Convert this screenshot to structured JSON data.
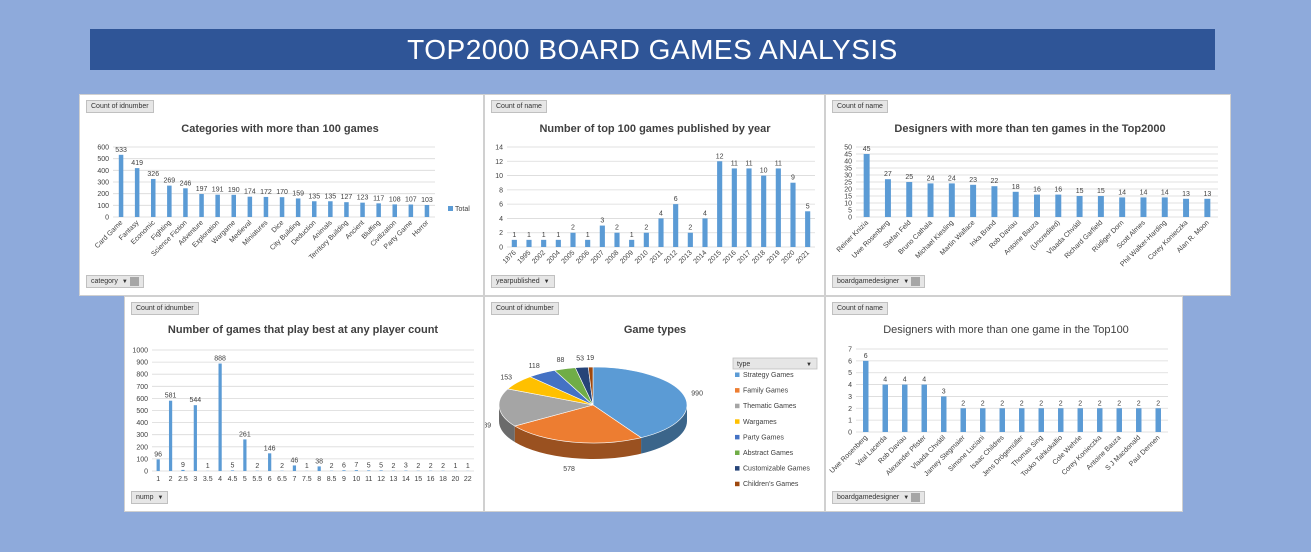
{
  "page_title": "TOP2000 BOARD GAMES ANALYSIS",
  "colors": {
    "bar": "#5b9bd5",
    "grid": "#d9d9d9",
    "banner": "#2f5597"
  },
  "charts": {
    "categories": {
      "field_button": "Count of idnumber",
      "filter_button": "category",
      "chart_data": {
        "type": "bar",
        "title": "Categories with more than 100 games",
        "categories": [
          "Card Game",
          "Fantasy",
          "Economic",
          "Fighting",
          "Science Fiction",
          "Adventure",
          "Exploration",
          "Wargame",
          "Medieval",
          "Miniatures",
          "Dice",
          "City Building",
          "Deduction",
          "Animals",
          "Territory Building",
          "Ancient",
          "Bluffing",
          "Civilization",
          "Party Game",
          "Horror"
        ],
        "values": [
          533,
          419,
          326,
          269,
          246,
          197,
          191,
          190,
          174,
          172,
          170,
          159,
          135,
          135,
          127,
          123,
          117,
          108,
          107,
          103
        ],
        "ylim": [
          0,
          600
        ],
        "yticks": [
          0,
          100,
          200,
          300,
          400,
          500,
          600
        ],
        "legend": [
          "Total"
        ],
        "legend_position": "right"
      }
    },
    "years": {
      "field_button": "Count of name",
      "filter_button": "yearpublished",
      "chart_data": {
        "type": "bar",
        "title": "Number of top 100 games published by year",
        "categories": [
          "1876",
          "1995",
          "2002",
          "2004",
          "2005",
          "2006",
          "2007",
          "2008",
          "2009",
          "2010",
          "2011",
          "2012",
          "2013",
          "2014",
          "2015",
          "2016",
          "2017",
          "2018",
          "2019",
          "2020",
          "2021"
        ],
        "values": [
          1,
          1,
          1,
          1,
          2,
          1,
          3,
          2,
          1,
          2,
          4,
          6,
          2,
          4,
          12,
          11,
          11,
          10,
          11,
          9,
          5
        ],
        "ylim": [
          0,
          14
        ],
        "yticks": [
          0,
          2,
          4,
          6,
          8,
          10,
          12,
          14
        ]
      }
    },
    "designers2000": {
      "field_button": "Count of name",
      "filter_button": "boardgamedesigner",
      "chart_data": {
        "type": "bar",
        "title": "Designers with more than ten games in the Top2000",
        "categories": [
          "Reiner Knizia",
          "Uwe Rosenberg",
          "Stefan Feld",
          "Bruno Cathala",
          "Michael Kiesling",
          "Martin Wallace",
          "Inka Brand",
          "Rob Daviau",
          "Antoine Bauza",
          "(Uncredited)",
          "Vlaada Chvátil",
          "Richard Garfield",
          "Rüdiger Dorn",
          "Scott Almes",
          "Phil Walker-Harding",
          "Corey Konieczka",
          "Alan R. Moon"
        ],
        "values": [
          45,
          27,
          25,
          24,
          24,
          23,
          22,
          18,
          16,
          16,
          15,
          15,
          14,
          14,
          14,
          13,
          13
        ],
        "ylim": [
          0,
          50
        ],
        "yticks": [
          0,
          5,
          10,
          15,
          20,
          25,
          30,
          35,
          40,
          45,
          50
        ]
      }
    },
    "playercount": {
      "field_button": "Count of idnumber",
      "filter_button": "nump",
      "chart_data": {
        "type": "bar",
        "title": "Number of games that play best at any player count",
        "categories": [
          "1",
          "2",
          "2.5",
          "3",
          "3.5",
          "4",
          "4.5",
          "5",
          "5.5",
          "6",
          "6.5",
          "7",
          "7.5",
          "8",
          "8.5",
          "9",
          "10",
          "11",
          "12",
          "13",
          "14",
          "15",
          "16",
          "18",
          "20",
          "22"
        ],
        "values": [
          96,
          581,
          9,
          544,
          1,
          888,
          5,
          261,
          2,
          146,
          2,
          46,
          1,
          38,
          2,
          6,
          7,
          5,
          5,
          2,
          3,
          2,
          2,
          2,
          1,
          1
        ],
        "ylim": [
          0,
          1000
        ],
        "yticks": [
          0,
          100,
          200,
          300,
          400,
          500,
          600,
          700,
          800,
          900,
          1000
        ]
      }
    },
    "types": {
      "field_button": "Count of idnumber",
      "chart_data": {
        "type": "pie",
        "title": "Game types",
        "legend_title": "type",
        "legend_position": "right",
        "slices": [
          {
            "label": "Strategy Games",
            "value": 990,
            "color": "#5b9bd5"
          },
          {
            "label": "Family Games",
            "value": 578,
            "color": "#ed7d31"
          },
          {
            "label": "Thematic Games",
            "value": 389,
            "color": "#a5a5a5"
          },
          {
            "label": "Wargames",
            "value": 153,
            "color": "#ffc000"
          },
          {
            "label": "Party Games",
            "value": 118,
            "color": "#4472c4"
          },
          {
            "label": "Abstract Games",
            "value": 88,
            "color": "#70ad47"
          },
          {
            "label": "Customizable Games",
            "value": 53,
            "color": "#264478"
          },
          {
            "label": "Children's Games",
            "value": 19,
            "color": "#9e480e"
          }
        ]
      }
    },
    "designers100": {
      "field_button": "Count of name",
      "filter_button": "boardgamedesigner",
      "chart_data": {
        "type": "bar",
        "title": "Designers with more than one game in the Top100",
        "categories": [
          "Uwe Rosenberg",
          "Vital Lacerda",
          "Rob Daviau",
          "Alexander Pfister",
          "Vlaada Chvátil",
          "Jamey Stegmaier",
          "Simone Luciani",
          "Isaac Childres",
          "Jens Drögemüller",
          "Thomas Sing",
          "Touko Tahkokallio",
          "Cole Wehrle",
          "Corey Konieczka",
          "Antoine Bauza",
          "S J Macdonald",
          "Paul Dennen"
        ],
        "values": [
          6,
          4,
          4,
          4,
          3,
          2,
          2,
          2,
          2,
          2,
          2,
          2,
          2,
          2,
          2,
          2
        ],
        "ylim": [
          0,
          7
        ],
        "yticks": [
          0,
          1,
          2,
          3,
          4,
          5,
          6,
          7
        ]
      }
    }
  }
}
